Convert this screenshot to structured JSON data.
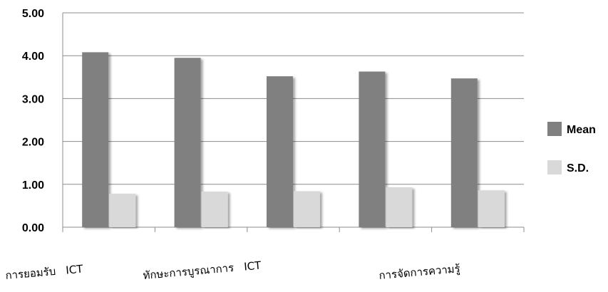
{
  "chart_data": {
    "type": "bar",
    "title": "",
    "xlabel": "",
    "ylabel": "",
    "ylim": [
      0,
      5
    ],
    "yticks": [
      "0.00",
      "1.00",
      "2.00",
      "3.00",
      "4.00",
      "5.00"
    ],
    "grid": "horizontal",
    "legend_position": "right",
    "categories": [
      "การยอมรับ   ICT",
      "ทักษะการบูรณาการ   ICT",
      "",
      "การจัดการความรู้",
      ""
    ],
    "series": [
      {
        "name": "Mean",
        "color": "#808080",
        "values": [
          4.08,
          3.95,
          3.52,
          3.63,
          3.47
        ]
      },
      {
        "name": "S.D.",
        "color": "#d9d9d9",
        "values": [
          0.78,
          0.83,
          0.84,
          0.93,
          0.86
        ]
      }
    ]
  }
}
